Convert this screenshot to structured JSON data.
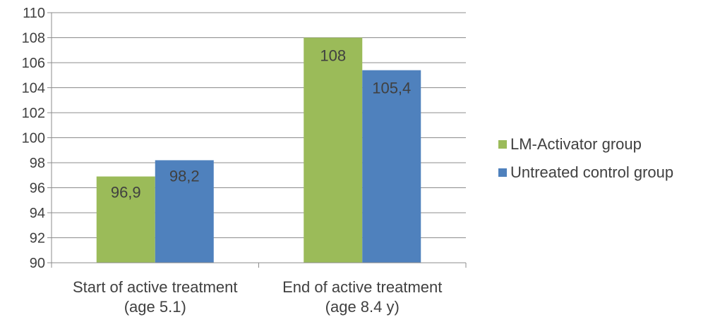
{
  "chart_data": {
    "type": "bar",
    "categories": [
      [
        "Start of active treatment",
        "(age 5.1)"
      ],
      [
        "End of active treatment",
        "(age 8.4 y)"
      ]
    ],
    "series": [
      {
        "name": "LM-Activator group",
        "values": [
          96.9,
          108
        ],
        "labels": [
          "96,9",
          "108"
        ],
        "color": "#9BBB59"
      },
      {
        "name": "Untreated control group",
        "values": [
          98.2,
          105.4
        ],
        "labels": [
          "98,2",
          "105,4"
        ],
        "color": "#4F81BD"
      }
    ],
    "ylim": [
      90,
      110
    ],
    "yticks": [
      90,
      92,
      94,
      96,
      98,
      100,
      102,
      104,
      106,
      108,
      110
    ],
    "grid": true,
    "legend": "right",
    "title": "",
    "xlabel": "",
    "ylabel": ""
  }
}
